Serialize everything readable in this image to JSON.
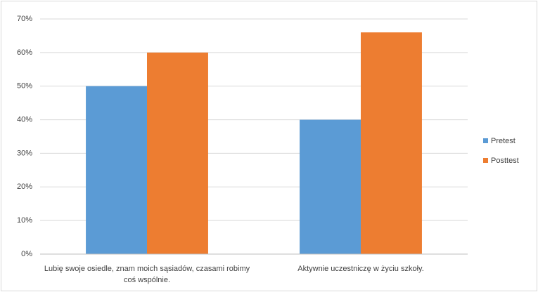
{
  "chart_data": {
    "type": "bar",
    "categories": [
      "Lubię swoje osiedle, znam moich sąsiadów, czasami robimy coś wspólnie.",
      "Aktywnie uczestniczę w życiu szkoły."
    ],
    "series": [
      {
        "name": "Pretest",
        "color": "#5b9bd5",
        "values": [
          50,
          40
        ]
      },
      {
        "name": "Posttest",
        "color": "#ed7d31",
        "values": [
          60,
          66
        ]
      }
    ],
    "ylim": [
      0,
      70
    ],
    "yticks": [
      {
        "value": 0,
        "label": "0%"
      },
      {
        "value": 10,
        "label": "10%"
      },
      {
        "value": 20,
        "label": "20%"
      },
      {
        "value": 30,
        "label": "30%"
      },
      {
        "value": 40,
        "label": "40%"
      },
      {
        "value": 50,
        "label": "50%"
      },
      {
        "value": 60,
        "label": "60%"
      },
      {
        "value": 70,
        "label": "70%"
      }
    ],
    "grid": true,
    "legend": "right"
  }
}
